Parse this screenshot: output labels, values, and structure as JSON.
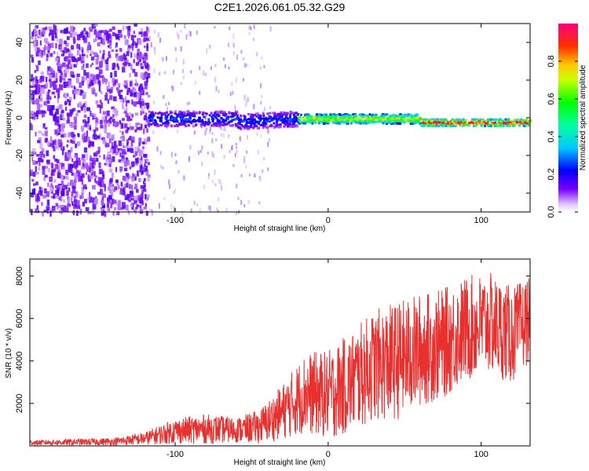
{
  "page": {
    "title": "C2E1.2026.061.05.32.G29"
  },
  "chart_data": [
    {
      "type": "heatmap",
      "title": "C2E1.2026.061.05.32.G29",
      "xlabel": "Height of straight line (km)",
      "ylabel": "Frequency (Hz)",
      "xlim": [
        -195,
        132
      ],
      "ylim": [
        -50,
        50
      ],
      "xticks": [
        -100,
        0,
        100
      ],
      "yticks": [
        -40,
        -20,
        0,
        20,
        40
      ],
      "xtick_labels": [
        "-100",
        "0",
        "100"
      ],
      "ytick_labels": [
        "-40",
        "-20",
        "0",
        "20",
        "40"
      ],
      "colorbar": {
        "label": "Normalized spectral amplitude",
        "range": [
          0,
          1
        ],
        "ticks": [
          0.0,
          0.2,
          0.4,
          0.6,
          0.8
        ],
        "tick_labels": [
          "0.0",
          "0.2",
          "0.4",
          "0.6",
          "0.8"
        ],
        "colormap": [
          "#ffffff",
          "#7a00ff",
          "#0000ff",
          "#00ffff",
          "#00ff00",
          "#ffff00",
          "#ff8000",
          "#ff0000",
          "#ff00ff"
        ]
      },
      "regions": [
        {
          "name": "noise",
          "x_range": [
            -195,
            -118
          ],
          "freq_range": [
            -50,
            50
          ],
          "amplitude": 0.05
        },
        {
          "name": "signal-early",
          "x_range": [
            -118,
            -20
          ],
          "center_freq": 0,
          "half_width": 4,
          "amplitude": 0.25
        },
        {
          "name": "signal-mid",
          "x_range": [
            -20,
            60
          ],
          "center_freq": 0,
          "half_width": 2.5,
          "amplitude": 0.7
        },
        {
          "name": "signal-late",
          "x_range": [
            60,
            132
          ],
          "center_freq": -2,
          "half_width": 1.8,
          "amplitude": 0.95
        }
      ]
    },
    {
      "type": "line",
      "xlabel": "Height of straight line (km)",
      "ylabel": "SNR (10 * v/v)",
      "xlim": [
        -195,
        132
      ],
      "ylim": [
        0,
        8800
      ],
      "xticks": [
        -100,
        0,
        100
      ],
      "yticks": [
        2000,
        4000,
        6000,
        8000
      ],
      "xtick_labels": [
        "-100",
        "0",
        "100"
      ],
      "ytick_labels": [
        "2000",
        "4000",
        "6000",
        "8000"
      ],
      "series_color": "#e8302f",
      "envelope": {
        "x": [
          -195,
          -140,
          -120,
          -100,
          -80,
          -60,
          -45,
          -30,
          -15,
          0,
          15,
          30,
          45,
          60,
          75,
          90,
          105,
          120,
          132
        ],
        "mean": [
          150,
          200,
          350,
          700,
          800,
          750,
          900,
          1600,
          2500,
          2400,
          3000,
          3800,
          4000,
          4500,
          4800,
          5500,
          5800,
          5200,
          6000
        ],
        "amp": [
          120,
          180,
          300,
          600,
          700,
          600,
          800,
          1300,
          1900,
          2100,
          2400,
          2600,
          2800,
          2700,
          2600,
          2500,
          2400,
          2300,
          2000
        ]
      }
    }
  ]
}
